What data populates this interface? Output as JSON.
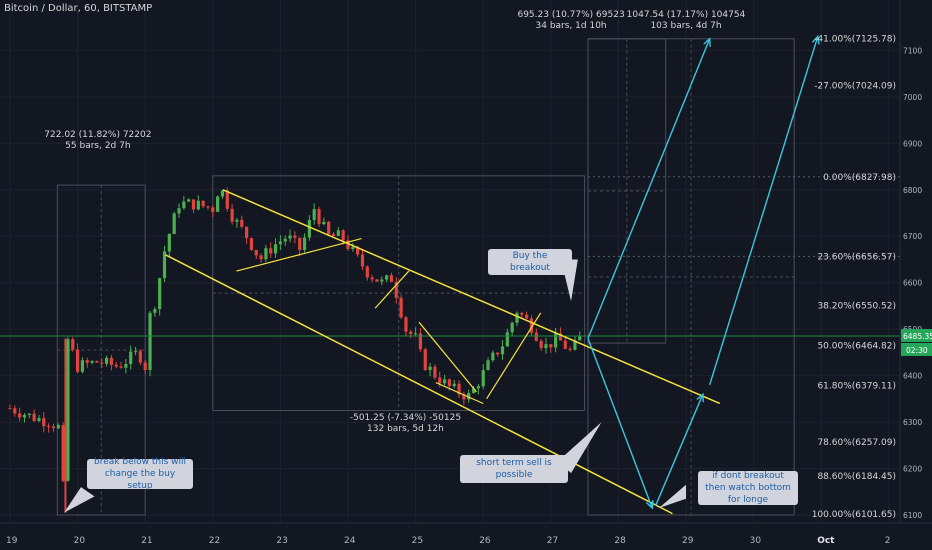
{
  "symbol_title": "Bitcoin / Dollar, 60, BITSTAMP",
  "colors": {
    "background": "#131722",
    "grid": "#1e2230",
    "bull": "#4caf50",
    "bear": "#e0443c",
    "channel": "#f5e13a",
    "projection": "#39c6e0",
    "fib_text": "#d6d6d6",
    "price_line": "#1e8c3a",
    "note_bg": "#d1d4dc",
    "note_text": "#1e5ea8"
  },
  "chart_data": {
    "type": "candlestick",
    "timeframe": "60",
    "x_axis": {
      "ticks": [
        "19",
        "20",
        "21",
        "22",
        "23",
        "24",
        "25",
        "26",
        "27",
        "28",
        "29",
        "30",
        "Oct",
        "2"
      ]
    },
    "y_axis": {
      "range": [
        6075,
        7160
      ],
      "ticks": [
        6100,
        6200,
        6300,
        6400,
        6500,
        6600,
        6700,
        6800,
        6900,
        7000,
        7100
      ]
    },
    "last_price": {
      "value": "6485.35",
      "countdown": "02:30"
    },
    "price_path": [
      [
        0.0,
        6330
      ],
      [
        0.35,
        6310
      ],
      [
        0.6,
        6300
      ],
      [
        0.75,
        6285
      ],
      [
        0.8,
        6110
      ],
      [
        0.85,
        6480
      ],
      [
        1.0,
        6420
      ],
      [
        1.3,
        6430
      ],
      [
        1.6,
        6420
      ],
      [
        1.9,
        6450
      ],
      [
        2.0,
        6420
      ],
      [
        2.05,
        6520
      ],
      [
        2.15,
        6560
      ],
      [
        2.3,
        6680
      ],
      [
        2.5,
        6770
      ],
      [
        2.7,
        6770
      ],
      [
        3.0,
        6760
      ],
      [
        3.1,
        6810
      ],
      [
        3.3,
        6740
      ],
      [
        3.5,
        6700
      ],
      [
        3.7,
        6650
      ],
      [
        3.9,
        6680
      ],
      [
        4.1,
        6700
      ],
      [
        4.3,
        6670
      ],
      [
        4.5,
        6760
      ],
      [
        4.7,
        6700
      ],
      [
        4.9,
        6700
      ],
      [
        5.1,
        6660
      ],
      [
        5.3,
        6620
      ],
      [
        5.5,
        6600
      ],
      [
        5.65,
        6610
      ],
      [
        5.75,
        6560
      ],
      [
        5.85,
        6500
      ],
      [
        6.0,
        6480
      ],
      [
        6.1,
        6430
      ],
      [
        6.3,
        6400
      ],
      [
        6.5,
        6375
      ],
      [
        6.7,
        6360
      ],
      [
        6.8,
        6355
      ],
      [
        6.9,
        6380
      ],
      [
        7.1,
        6430
      ],
      [
        7.3,
        6470
      ],
      [
        7.5,
        6540
      ],
      [
        7.7,
        6510
      ],
      [
        7.9,
        6460
      ],
      [
        8.1,
        6480
      ],
      [
        8.3,
        6450
      ],
      [
        8.45,
        6485
      ]
    ],
    "measurements": [
      {
        "line1": "722.02 (11.82%) 72202",
        "line2": "55 bars, 2d 7h"
      },
      {
        "line1": "-501.25 (-7.34%) -50125",
        "line2": "132 bars, 5d 12h"
      },
      {
        "line1": "695.23 (10.77%) 69523",
        "line2": "34 bars, 1d 10h"
      },
      {
        "line1": "1047.54 (17.17%) 104754",
        "line2": "103 bars, 4d 7h"
      }
    ],
    "fib_levels": [
      {
        "label": "-41.00%(7125.78)",
        "price": 7125.78
      },
      {
        "label": "-27.00%(7024.09)",
        "price": 7024.09
      },
      {
        "label": "0.00%(6827.98)",
        "price": 6827.98
      },
      {
        "label": "23.60%(6656.57)",
        "price": 6656.57
      },
      {
        "label": "38.20%(6550.52)",
        "price": 6550.52
      },
      {
        "label": "50.00%(6464.82)",
        "price": 6464.82
      },
      {
        "label": "61.80%(6379.11)",
        "price": 6379.11
      },
      {
        "label": "78.60%(6257.09)",
        "price": 6257.09
      },
      {
        "label": "88.60%(6184.45)",
        "price": 6184.45
      },
      {
        "label": "100.00%(6101.65)",
        "price": 6101.65
      }
    ]
  },
  "notes": {
    "buy_breakout": "Buy the breakout",
    "break_below": "break below this will change the buy setup",
    "short_term": "short term sell is possible",
    "dont_breakout": "if dont breakout then watch bottom for longe"
  }
}
